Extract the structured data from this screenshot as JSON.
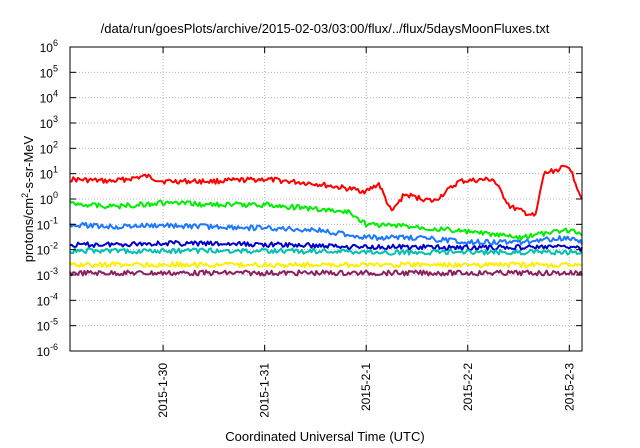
{
  "chart_data": {
    "type": "line",
    "title": "/data/run/goesPlots/archive/2015-02-03/03:00/flux/../flux/5daysMoonFluxes.txt",
    "xlabel": "Coordinated Universal Time (UTC)",
    "ylabel": {
      "prefix": "protons/cm",
      "sup": "2",
      "suffix": "-s-sr-MeV"
    },
    "y_scale": "log",
    "ylim": [
      1e-06,
      1000000.0
    ],
    "y_ticks": [
      {
        "exp": "-6",
        "value": 1e-06
      },
      {
        "exp": "-5",
        "value": 1e-05
      },
      {
        "exp": "-4",
        "value": 0.0001
      },
      {
        "exp": "-3",
        "value": 0.001
      },
      {
        "exp": "-2",
        "value": 0.01
      },
      {
        "exp": "-1",
        "value": 0.1
      },
      {
        "exp": "0",
        "value": 1
      },
      {
        "exp": "1",
        "value": 10.0
      },
      {
        "exp": "2",
        "value": 100.0
      },
      {
        "exp": "3",
        "value": 1000.0
      },
      {
        "exp": "4",
        "value": 10000.0
      },
      {
        "exp": "5",
        "value": 100000.0
      },
      {
        "exp": "6",
        "value": 1000000.0
      }
    ],
    "y_tick_base": "10",
    "xlim": [
      "2015-01-29T02:00",
      "2015-02-03T03:00"
    ],
    "x_ticks": [
      {
        "label": "2015-1-30",
        "value": "2015-01-30T00:00"
      },
      {
        "label": "2015-1-31",
        "value": "2015-01-31T00:00"
      },
      {
        "label": "2015-2-1",
        "value": "2015-02-01T00:00"
      },
      {
        "label": "2015-2-2",
        "value": "2015-02-02T00:00"
      },
      {
        "label": "2015-2-3",
        "value": "2015-02-03T00:00"
      }
    ],
    "grid": true,
    "legend": "none",
    "series": [
      {
        "color": "#ff0000",
        "points": [
          [
            "2015-01-29T02:00",
            6
          ],
          [
            "2015-01-29T12:00",
            5
          ],
          [
            "2015-01-29T20:00",
            8
          ],
          [
            "2015-01-30T00:00",
            5
          ],
          [
            "2015-01-30T12:00",
            5
          ],
          [
            "2015-01-31T00:00",
            6
          ],
          [
            "2015-01-31T12:00",
            4
          ],
          [
            "2015-02-01T00:00",
            2
          ],
          [
            "2015-02-01T03:00",
            4
          ],
          [
            "2015-02-01T06:00",
            0.3
          ],
          [
            "2015-02-01T09:00",
            1.5
          ],
          [
            "2015-02-01T16:00",
            0.8
          ],
          [
            "2015-02-01T22:00",
            5
          ],
          [
            "2015-02-02T06:00",
            6
          ],
          [
            "2015-02-02T10:00",
            0.5
          ],
          [
            "2015-02-02T16:00",
            0.2
          ],
          [
            "2015-02-02T18:00",
            10
          ],
          [
            "2015-02-03T00:00",
            20
          ],
          [
            "2015-02-03T03:00",
            1
          ]
        ]
      },
      {
        "color": "#00ee00",
        "points": [
          [
            "2015-01-29T02:00",
            0.7
          ],
          [
            "2015-01-29T12:00",
            0.5
          ],
          [
            "2015-01-30T00:00",
            0.7
          ],
          [
            "2015-01-30T12:00",
            0.6
          ],
          [
            "2015-01-31T00:00",
            0.6
          ],
          [
            "2015-01-31T12:00",
            0.4
          ],
          [
            "2015-01-31T20:00",
            0.3
          ],
          [
            "2015-02-01T00:00",
            0.1
          ],
          [
            "2015-02-01T12:00",
            0.08
          ],
          [
            "2015-02-02T00:00",
            0.05
          ],
          [
            "2015-02-02T12:00",
            0.03
          ],
          [
            "2015-02-03T00:00",
            0.06
          ],
          [
            "2015-02-03T03:00",
            0.04
          ]
        ]
      },
      {
        "color": "#1e78ff",
        "points": [
          [
            "2015-01-29T02:00",
            0.1
          ],
          [
            "2015-01-29T12:00",
            0.08
          ],
          [
            "2015-01-30T00:00",
            0.09
          ],
          [
            "2015-01-30T12:00",
            0.08
          ],
          [
            "2015-01-31T00:00",
            0.07
          ],
          [
            "2015-01-31T12:00",
            0.06
          ],
          [
            "2015-02-01T00:00",
            0.03
          ],
          [
            "2015-02-01T12:00",
            0.03
          ],
          [
            "2015-02-02T00:00",
            0.02
          ],
          [
            "2015-02-02T12:00",
            0.02
          ],
          [
            "2015-02-03T00:00",
            0.03
          ],
          [
            "2015-02-03T03:00",
            0.02
          ]
        ]
      },
      {
        "color": "#0000cc",
        "points": [
          [
            "2015-01-29T02:00",
            0.015
          ],
          [
            "2015-01-30T00:00",
            0.018
          ],
          [
            "2015-01-31T00:00",
            0.016
          ],
          [
            "2015-02-01T00:00",
            0.013
          ],
          [
            "2015-02-02T00:00",
            0.012
          ],
          [
            "2015-02-03T00:00",
            0.013
          ],
          [
            "2015-02-03T03:00",
            0.011
          ]
        ]
      },
      {
        "color": "#00c0b0",
        "points": [
          [
            "2015-01-29T02:00",
            0.009
          ],
          [
            "2015-01-30T00:00",
            0.009
          ],
          [
            "2015-01-31T00:00",
            0.009
          ],
          [
            "2015-02-01T00:00",
            0.008
          ],
          [
            "2015-02-02T00:00",
            0.008
          ],
          [
            "2015-02-03T00:00",
            0.008
          ],
          [
            "2015-02-03T03:00",
            0.008
          ]
        ]
      },
      {
        "color": "#ffee00",
        "points": [
          [
            "2015-01-29T02:00",
            0.0025
          ],
          [
            "2015-01-30T00:00",
            0.0026
          ],
          [
            "2015-01-31T00:00",
            0.0025
          ],
          [
            "2015-02-01T00:00",
            0.0025
          ],
          [
            "2015-02-02T00:00",
            0.0025
          ],
          [
            "2015-02-03T00:00",
            0.0025
          ],
          [
            "2015-02-03T03:00",
            0.0025
          ]
        ]
      },
      {
        "color": "#8b2060",
        "points": [
          [
            "2015-01-29T02:00",
            0.0012
          ],
          [
            "2015-01-30T00:00",
            0.0012
          ],
          [
            "2015-01-31T00:00",
            0.0012
          ],
          [
            "2015-02-01T00:00",
            0.0012
          ],
          [
            "2015-02-02T00:00",
            0.0012
          ],
          [
            "2015-02-03T00:00",
            0.0012
          ],
          [
            "2015-02-03T03:00",
            0.0012
          ]
        ]
      }
    ]
  }
}
